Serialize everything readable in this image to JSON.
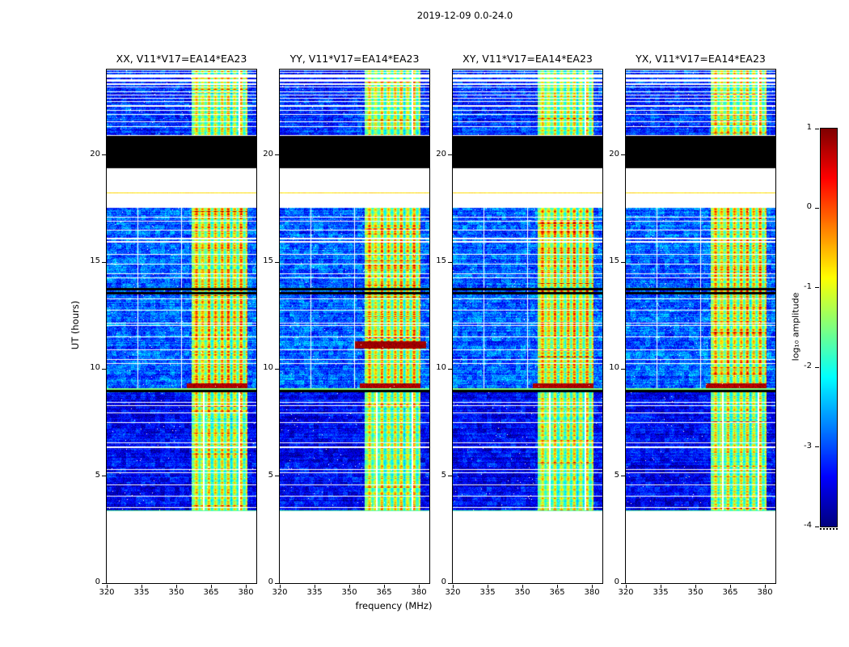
{
  "figure": {
    "title": "2019-12-09 0.0-24.0"
  },
  "chart_data": {
    "type": "heatmap",
    "title": "2019-12-09 0.0-24.0",
    "xlabel": "frequency (MHz)",
    "ylabel": "UT (hours)",
    "colorbar_label": "log₁₀ amplitude",
    "x_ticks": [
      320,
      335,
      350,
      365,
      380
    ],
    "y_ticks": [
      0,
      5,
      10,
      15,
      20
    ],
    "colorbar_ticks": [
      1,
      0,
      -1,
      -2,
      -3,
      -4
    ],
    "x_range": [
      320,
      384.5
    ],
    "y_range": [
      0,
      24
    ],
    "value_range": [
      -4,
      1
    ],
    "panels": [
      {
        "title": "XX, V11*V17=EA14*EA23",
        "seed": 11
      },
      {
        "title": "YY, V11*V17=EA14*EA23",
        "seed": 22,
        "features": [
          {
            "type": "hot_row",
            "t0": 10.95,
            "t1": 11.3,
            "f0": 352,
            "f1": 383,
            "value": 0.85
          }
        ]
      },
      {
        "title": "XY, V11*V17=EA14*EA23",
        "seed": 33
      },
      {
        "title": "YX, V11*V17=EA14*EA23",
        "seed": 44
      }
    ],
    "segments": [
      {
        "t0": 3.35,
        "t1": 8.92,
        "base": -3.4,
        "noise": 0.5,
        "band_boost": 2.55
      },
      {
        "t0": 9.02,
        "t1": 17.55,
        "base": -2.9,
        "noise": 0.6,
        "band_boost": 3.0
      },
      {
        "t0": 20.95,
        "t1": 23.15,
        "base": -3.15,
        "noise": 0.55,
        "band_boost": 2.6
      }
    ],
    "band": {
      "f0": 356.5,
      "f1": 380.5
    },
    "black_bands": [
      [
        19.4,
        20.9
      ],
      [
        8.92,
        9.02
      ],
      [
        13.5,
        13.6
      ],
      [
        13.7,
        13.78
      ]
    ],
    "white_lines": [
      3.55,
      4.05,
      4.6,
      5.15,
      5.32,
      6.35,
      6.55,
      7.5,
      7.95,
      8.3,
      8.45,
      10.25,
      10.45,
      10.9,
      11.5,
      12.05,
      12.15,
      12.75,
      13.3,
      14.25,
      14.45,
      14.9,
      15.35,
      15.95,
      16.1,
      16.5,
      16.9,
      17.1,
      21.35,
      21.55,
      21.9,
      22.1,
      22.3,
      22.5,
      22.65,
      22.8,
      22.95
    ],
    "stripe_lines": [
      23.25,
      23.4,
      23.6,
      23.8,
      23.92
    ],
    "hot_lines": [
      {
        "t": 18.25,
        "value": -0.7
      },
      {
        "t": 9.07,
        "value": -1.5
      },
      {
        "t": 3.38,
        "value": -1.7
      }
    ],
    "hot_band_rows": [
      [
        9.05,
        9.35
      ]
    ],
    "white_cols": [
      {
        "f": 333.5,
        "segments": [
          1
        ]
      },
      {
        "f": 352.2,
        "segments": [
          1
        ]
      },
      {
        "f": 361.8,
        "segments": [
          0
        ]
      },
      {
        "f": 377.2,
        "segments": [
          0,
          2
        ]
      }
    ]
  }
}
